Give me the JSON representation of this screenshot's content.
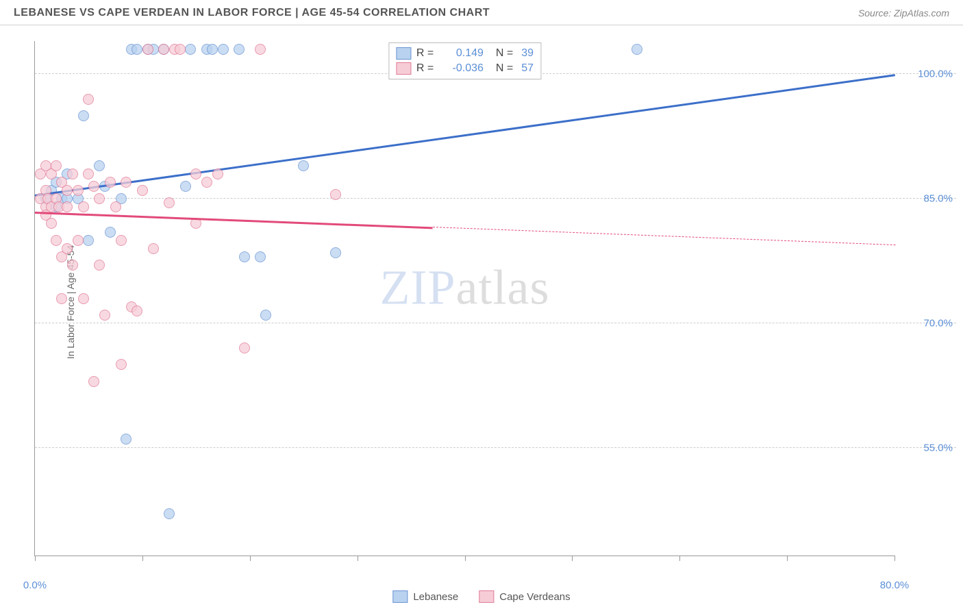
{
  "header": {
    "title": "LEBANESE VS CAPE VERDEAN IN LABOR FORCE | AGE 45-54 CORRELATION CHART",
    "source": "Source: ZipAtlas.com"
  },
  "watermark": {
    "part1": "ZIP",
    "part2": "atlas"
  },
  "chart": {
    "type": "scatter",
    "y_axis_label": "In Labor Force | Age 45-54",
    "xlim": [
      0,
      80
    ],
    "ylim": [
      42,
      104
    ],
    "x_ticks": [
      0,
      10,
      20,
      30,
      40,
      50,
      60,
      70,
      80
    ],
    "x_tick_labels": {
      "0": "0.0%",
      "80": "80.0%"
    },
    "y_gridlines": [
      55,
      70,
      85,
      100
    ],
    "y_tick_labels": {
      "55": "55.0%",
      "70": "70.0%",
      "85": "85.0%",
      "100": "100.0%"
    },
    "grid_color": "#cccccc",
    "axis_color": "#999999",
    "tick_label_color": "#5b8fd6",
    "background_color": "#ffffff",
    "marker_radius": 8,
    "series": [
      {
        "name": "Lebanese",
        "color_fill": "#b9d2ef",
        "color_stroke": "#6a94d4",
        "opacity": 0.75,
        "r": 0.149,
        "n": 39,
        "trend": {
          "x1": 0,
          "y1": 85.5,
          "x2": 80,
          "y2": 100,
          "color": "#3c6fc9",
          "width": 3,
          "dash_after_x": null
        },
        "points": [
          [
            1,
            85
          ],
          [
            1.5,
            86
          ],
          [
            2,
            87
          ],
          [
            2,
            84
          ],
          [
            2.5,
            85
          ],
          [
            3,
            85
          ],
          [
            3,
            88
          ],
          [
            4,
            85
          ],
          [
            4.5,
            95
          ],
          [
            5,
            80
          ],
          [
            6,
            89
          ],
          [
            6.5,
            86.5
          ],
          [
            7,
            81
          ],
          [
            8,
            85
          ],
          [
            8.5,
            56
          ],
          [
            9,
            103
          ],
          [
            9.5,
            103
          ],
          [
            10.5,
            103
          ],
          [
            11,
            103
          ],
          [
            12,
            103
          ],
          [
            12.5,
            47
          ],
          [
            14,
            86.5
          ],
          [
            14.5,
            103
          ],
          [
            16,
            103
          ],
          [
            16.5,
            103
          ],
          [
            17.5,
            103
          ],
          [
            19,
            103
          ],
          [
            19.5,
            78
          ],
          [
            21,
            78
          ],
          [
            21.5,
            71
          ],
          [
            25,
            89
          ],
          [
            28,
            78.5
          ],
          [
            56,
            103
          ]
        ]
      },
      {
        "name": "Cape Verdeans",
        "color_fill": "#f6cdd7",
        "color_stroke": "#e27a96",
        "opacity": 0.75,
        "r": -0.036,
        "n": 57,
        "trend": {
          "x1": 0,
          "y1": 83.5,
          "x2": 80,
          "y2": 79.5,
          "color": "#e24a7a",
          "width": 2.5,
          "dash_after_x": 37
        },
        "points": [
          [
            0.5,
            85
          ],
          [
            0.5,
            88
          ],
          [
            1,
            84
          ],
          [
            1,
            83
          ],
          [
            1,
            86
          ],
          [
            1,
            89
          ],
          [
            1.2,
            85
          ],
          [
            1.5,
            82
          ],
          [
            1.5,
            88
          ],
          [
            1.5,
            84
          ],
          [
            2,
            85
          ],
          [
            2,
            80
          ],
          [
            2,
            89
          ],
          [
            2.2,
            84
          ],
          [
            2.5,
            87
          ],
          [
            2.5,
            78
          ],
          [
            2.5,
            73
          ],
          [
            3,
            86
          ],
          [
            3,
            84
          ],
          [
            3,
            79
          ],
          [
            3.5,
            88
          ],
          [
            3.5,
            77
          ],
          [
            4,
            86
          ],
          [
            4,
            80
          ],
          [
            4.5,
            84
          ],
          [
            4.5,
            73
          ],
          [
            5,
            97
          ],
          [
            5,
            88
          ],
          [
            5.5,
            86.5
          ],
          [
            5.5,
            63
          ],
          [
            6,
            85
          ],
          [
            6,
            77
          ],
          [
            6.5,
            71
          ],
          [
            7,
            87
          ],
          [
            7.5,
            84
          ],
          [
            8,
            80
          ],
          [
            8,
            65
          ],
          [
            8.5,
            87
          ],
          [
            9,
            72
          ],
          [
            9.5,
            71.5
          ],
          [
            10,
            86
          ],
          [
            10.5,
            103
          ],
          [
            11,
            79
          ],
          [
            12,
            103
          ],
          [
            12.5,
            84.5
          ],
          [
            13,
            103
          ],
          [
            13.5,
            103
          ],
          [
            15,
            88
          ],
          [
            15,
            82
          ],
          [
            16,
            87
          ],
          [
            17,
            88
          ],
          [
            19.5,
            67
          ],
          [
            21,
            103
          ],
          [
            28,
            85.5
          ]
        ]
      }
    ],
    "legend_top": {
      "r_label": "R =",
      "n_label": "N ="
    },
    "legend_bottom": [
      {
        "label": "Lebanese",
        "fill": "#b9d2ef",
        "stroke": "#6a94d4"
      },
      {
        "label": "Cape Verdeans",
        "fill": "#f6cdd7",
        "stroke": "#e27a96"
      }
    ]
  }
}
